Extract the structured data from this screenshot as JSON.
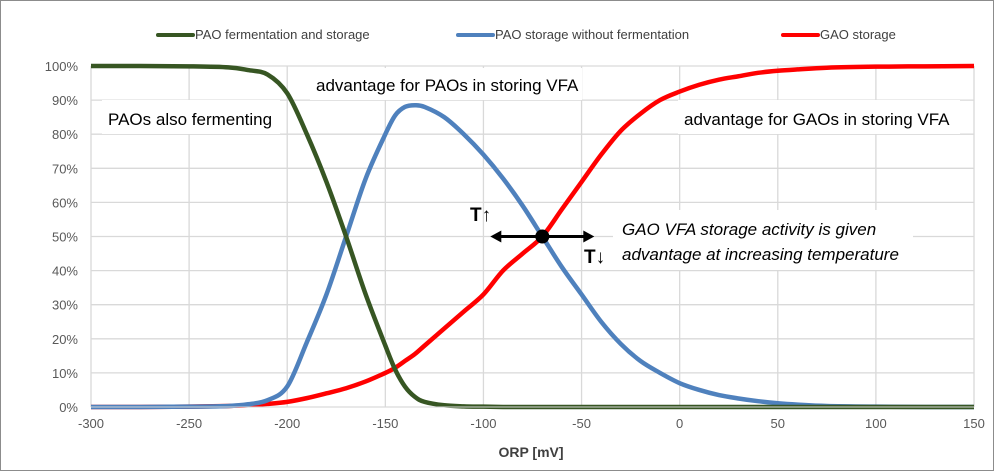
{
  "chart_data": {
    "type": "line",
    "title": "",
    "xlabel": "ORP [mV]",
    "ylabel": "",
    "xlim": [
      -300,
      150
    ],
    "ylim": [
      0,
      100
    ],
    "x_ticks": [
      -300,
      -250,
      -200,
      -150,
      -100,
      -50,
      0,
      50,
      100,
      150
    ],
    "x_tick_labels": [
      "-300",
      "-250",
      "-200",
      "-150",
      "-100",
      "-50",
      "0",
      "50",
      "100",
      "150"
    ],
    "y_ticks": [
      0,
      10,
      20,
      30,
      40,
      50,
      60,
      70,
      80,
      90,
      100
    ],
    "y_tick_labels": [
      "0%",
      "10%",
      "20%",
      "30%",
      "40%",
      "50%",
      "60%",
      "70%",
      "80%",
      "90%",
      "100%"
    ],
    "grid": true,
    "legend_position": "top",
    "x": [
      -300,
      -275,
      -250,
      -230,
      -220,
      -210,
      -200,
      -190,
      -180,
      -170,
      -160,
      -150,
      -145,
      -140,
      -135,
      -130,
      -120,
      -110,
      -100,
      -90,
      -80,
      -70,
      -60,
      -50,
      -40,
      -30,
      -20,
      -10,
      0,
      10,
      20,
      30,
      40,
      50,
      60,
      75,
      100,
      125,
      150
    ],
    "series": [
      {
        "name": "PAO fermentation and storage",
        "color": "#375623",
        "values": [
          100,
          100,
          99.9,
          99.6,
          98.8,
          97.5,
          92,
          80,
          66,
          50,
          33,
          18,
          11,
          6,
          3,
          1.5,
          0.5,
          0.2,
          0.1,
          0,
          0,
          0,
          0,
          0,
          0,
          0,
          0,
          0,
          0,
          0,
          0,
          0,
          0,
          0,
          0,
          0,
          0,
          0,
          0
        ]
      },
      {
        "name": "PAO storage without fermentation",
        "color": "#4f81bd",
        "values": [
          0,
          0,
          0.1,
          0.3,
          0.8,
          2,
          6,
          19,
          33,
          50,
          67,
          80,
          85.5,
          88,
          88.5,
          88,
          85,
          80,
          74,
          67,
          59,
          50,
          41,
          33,
          25,
          18.5,
          13.5,
          10,
          7,
          5,
          3.5,
          2.5,
          1.7,
          1.1,
          0.7,
          0.3,
          0.1,
          0,
          0
        ]
      },
      {
        "name": "GAO storage",
        "color": "#ff0000",
        "values": [
          0,
          0,
          0.1,
          0.3,
          0.5,
          0.9,
          1.5,
          2.6,
          4,
          5.5,
          7.5,
          10,
          11.5,
          13.5,
          15.5,
          18,
          23,
          28,
          33,
          40,
          45,
          50,
          58,
          66,
          74,
          81,
          86,
          90,
          92.5,
          94.5,
          96,
          97,
          98,
          98.6,
          99,
          99.5,
          99.8,
          99.9,
          100
        ]
      }
    ],
    "annotations": {
      "pao_fermenting": "PAOs also fermenting",
      "pao_advantage": "advantage for PAOs in storing VFA",
      "gao_advantage": "advantage for GAOs in storing VFA",
      "temp_note_line1": "GAO VFA storage activity is given",
      "temp_note_line2": "advantage at increasing temperature",
      "temp_up": "T↑",
      "temp_down": "T↓",
      "crossover_point": {
        "x": -70,
        "y": 50
      }
    }
  }
}
